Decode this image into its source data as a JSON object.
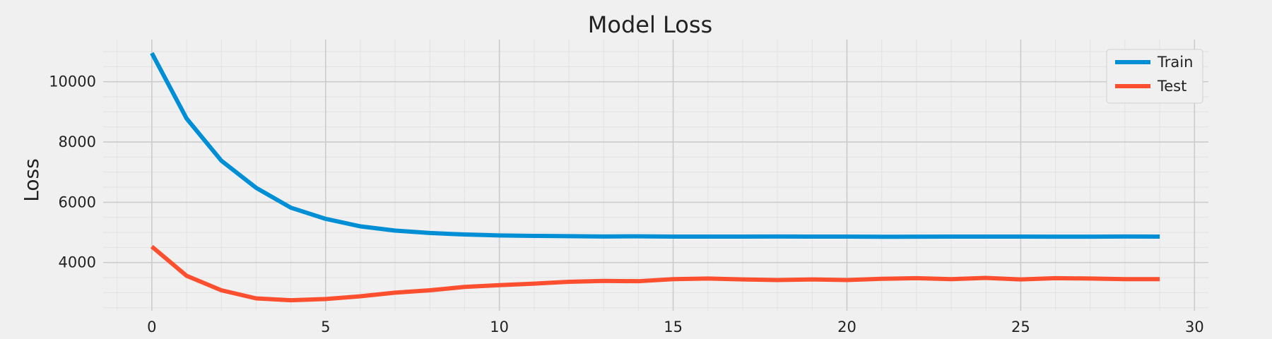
{
  "chart_data": {
    "type": "line",
    "title": "Model Loss",
    "xlabel": "",
    "ylabel": "Loss",
    "xlim": [
      -1.4,
      30.4
    ],
    "ylim": [
      2400,
      11400
    ],
    "xticks": [
      0,
      5,
      10,
      15,
      20,
      25,
      30
    ],
    "xtick_labels": [
      "0",
      "5",
      "10",
      "15",
      "20",
      "25",
      "30"
    ],
    "yticks": [
      4000,
      6000,
      8000,
      10000
    ],
    "ytick_labels": [
      "4000",
      "6000",
      "8000",
      "10000"
    ],
    "grid": true,
    "legend_position": "top-right",
    "x": [
      0,
      1,
      2,
      3,
      4,
      5,
      6,
      7,
      8,
      9,
      10,
      11,
      12,
      13,
      14,
      15,
      16,
      17,
      18,
      19,
      20,
      21,
      22,
      23,
      24,
      25,
      26,
      27,
      28,
      29
    ],
    "series": [
      {
        "name": "Train",
        "color": "#008fd5",
        "values": [
          10950,
          8780,
          7380,
          6480,
          5820,
          5450,
          5200,
          5060,
          4980,
          4930,
          4900,
          4885,
          4875,
          4865,
          4870,
          4860,
          4862,
          4860,
          4865,
          4860,
          4860,
          4855,
          4858,
          4862,
          4860,
          4860,
          4858,
          4858,
          4865,
          4860
        ]
      },
      {
        "name": "Test",
        "color": "#fc4f30",
        "values": [
          4530,
          3560,
          3080,
          2810,
          2750,
          2790,
          2880,
          3000,
          3080,
          3190,
          3250,
          3300,
          3360,
          3390,
          3380,
          3450,
          3470,
          3440,
          3420,
          3440,
          3420,
          3460,
          3480,
          3450,
          3490,
          3440,
          3480,
          3470,
          3450,
          3450
        ]
      }
    ]
  }
}
